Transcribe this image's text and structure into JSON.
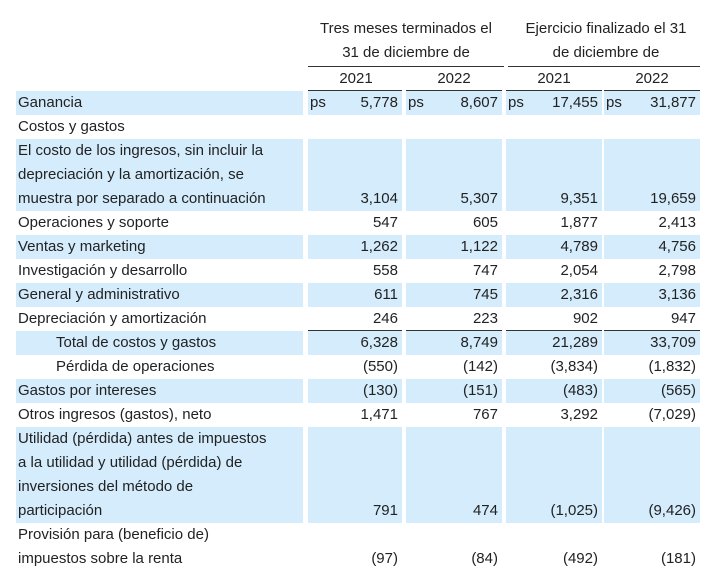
{
  "header": {
    "group1": [
      "Tres meses terminados el",
      "31 de diciembre de"
    ],
    "group2": [
      "Ejercicio finalizado el 31",
      "de diciembre de"
    ],
    "years": [
      "2021",
      "2022",
      "2021",
      "2022"
    ]
  },
  "currency": "ps",
  "rows": [
    {
      "label": [
        "Ganancia"
      ],
      "values": [
        "5,778",
        "8,607",
        "17,455",
        "31,877"
      ],
      "currency": true,
      "shaded": true
    },
    {
      "label": [
        "Costos y gastos"
      ],
      "values": [
        "",
        "",
        "",
        ""
      ],
      "shaded": false
    },
    {
      "label": [
        "El costo de los ingresos, sin incluir la",
        "depreciación y la amortización, se",
        "muestra por separado a continuación"
      ],
      "values": [
        "3,104",
        "5,307",
        "9,351",
        "19,659"
      ],
      "shaded": true
    },
    {
      "label": [
        "Operaciones y soporte"
      ],
      "values": [
        "547",
        "605",
        "1,877",
        "2,413"
      ],
      "shaded": false
    },
    {
      "label": [
        "Ventas y marketing"
      ],
      "values": [
        "1,262",
        "1,122",
        "4,789",
        "4,756"
      ],
      "shaded": true
    },
    {
      "label": [
        "Investigación y desarrollo"
      ],
      "values": [
        "558",
        "747",
        "2,054",
        "2,798"
      ],
      "shaded": false
    },
    {
      "label": [
        "General y administrativo"
      ],
      "values": [
        "611",
        "745",
        "2,316",
        "3,136"
      ],
      "shaded": true
    },
    {
      "label": [
        "Depreciación y amortización"
      ],
      "values": [
        "246",
        "223",
        "902",
        "947"
      ],
      "shaded": false
    },
    {
      "label": [
        "Total de costos y gastos"
      ],
      "values": [
        "6,328",
        "8,749",
        "21,289",
        "33,709"
      ],
      "shaded": true,
      "indent": true
    },
    {
      "label": [
        "Pérdida de operaciones"
      ],
      "values": [
        "(550)",
        "(142)",
        "(3,834)",
        "(1,832)"
      ],
      "shaded": false,
      "indent": true
    },
    {
      "label": [
        "Gastos por intereses"
      ],
      "values": [
        "(130)",
        "(151)",
        "(483)",
        "(565)"
      ],
      "shaded": true
    },
    {
      "label": [
        "Otros ingresos (gastos), neto"
      ],
      "values": [
        "1,471",
        "767",
        "3,292",
        "(7,029)"
      ],
      "shaded": false
    },
    {
      "label": [
        "Utilidad (pérdida) antes de impuestos",
        "a la utilidad y utilidad (pérdida) de",
        "inversiones del método de",
        "participación"
      ],
      "values": [
        "791",
        "474",
        "(1,025)",
        "(9,426)"
      ],
      "shaded": true
    },
    {
      "label": [
        "Provisión para (beneficio de)",
        "impuestos sobre la renta"
      ],
      "values": [
        "(97)",
        "(84)",
        "(492)",
        "(181)"
      ],
      "shaded": false
    }
  ]
}
